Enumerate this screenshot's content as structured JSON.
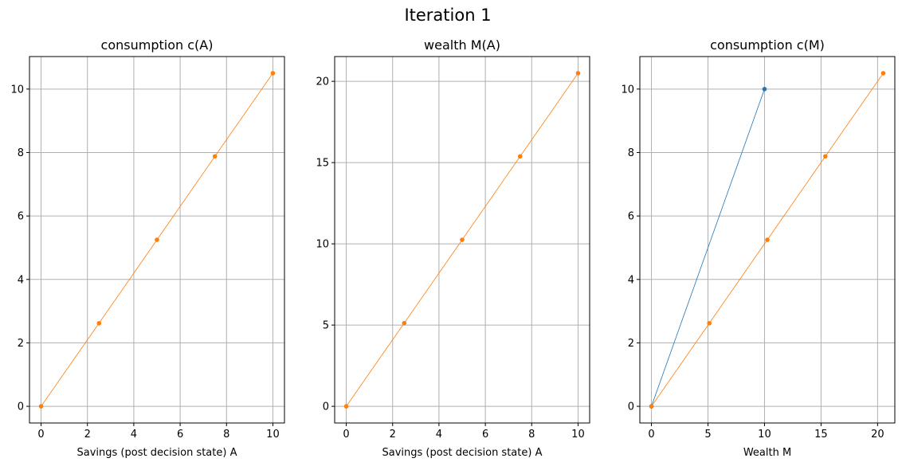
{
  "figure": {
    "suptitle": "Iteration 1"
  },
  "colors": {
    "blue": "#1f77b4",
    "orange": "#ff7f0e",
    "grid": "#b0b0b0"
  },
  "chart_data": [
    {
      "type": "line",
      "title": "consumption c(A)",
      "xlabel": "Savings (post decision state) A",
      "ylabel": "",
      "xlim": [
        -0.5,
        10.5
      ],
      "ylim": [
        -0.525,
        11.025
      ],
      "xticks": [
        0,
        2,
        4,
        6,
        8,
        10
      ],
      "yticks": [
        0,
        2,
        4,
        6,
        8,
        10
      ],
      "grid": true,
      "series": [
        {
          "color": "orange",
          "x": [
            0,
            2.5,
            5,
            7.5,
            10
          ],
          "y": [
            0,
            2.62,
            5.25,
            7.88,
            10.5
          ]
        }
      ]
    },
    {
      "type": "line",
      "title": "wealth M(A)",
      "xlabel": "Savings (post decision state) A",
      "ylabel": "",
      "xlim": [
        -0.5,
        10.5
      ],
      "ylim": [
        -1.025,
        21.525
      ],
      "xticks": [
        0,
        2,
        4,
        6,
        8,
        10
      ],
      "yticks": [
        0,
        5,
        10,
        15,
        20
      ],
      "grid": true,
      "series": [
        {
          "color": "orange",
          "x": [
            0,
            2.5,
            5,
            7.5,
            10
          ],
          "y": [
            0,
            5.12,
            10.25,
            15.38,
            20.5
          ]
        }
      ]
    },
    {
      "type": "line",
      "title": "consumption c(M)",
      "xlabel": "Wealth M",
      "ylabel": "",
      "xlim": [
        -1.025,
        21.525
      ],
      "ylim": [
        -0.525,
        11.025
      ],
      "xticks": [
        0,
        5,
        10,
        15,
        20
      ],
      "yticks": [
        0,
        2,
        4,
        6,
        8,
        10
      ],
      "grid": true,
      "series": [
        {
          "color": "blue",
          "x": [
            0,
            10
          ],
          "y": [
            0,
            10
          ]
        },
        {
          "color": "orange",
          "x": [
            0,
            5.12,
            10.25,
            15.38,
            20.5
          ],
          "y": [
            0,
            2.62,
            5.25,
            7.88,
            10.5
          ]
        }
      ]
    }
  ]
}
